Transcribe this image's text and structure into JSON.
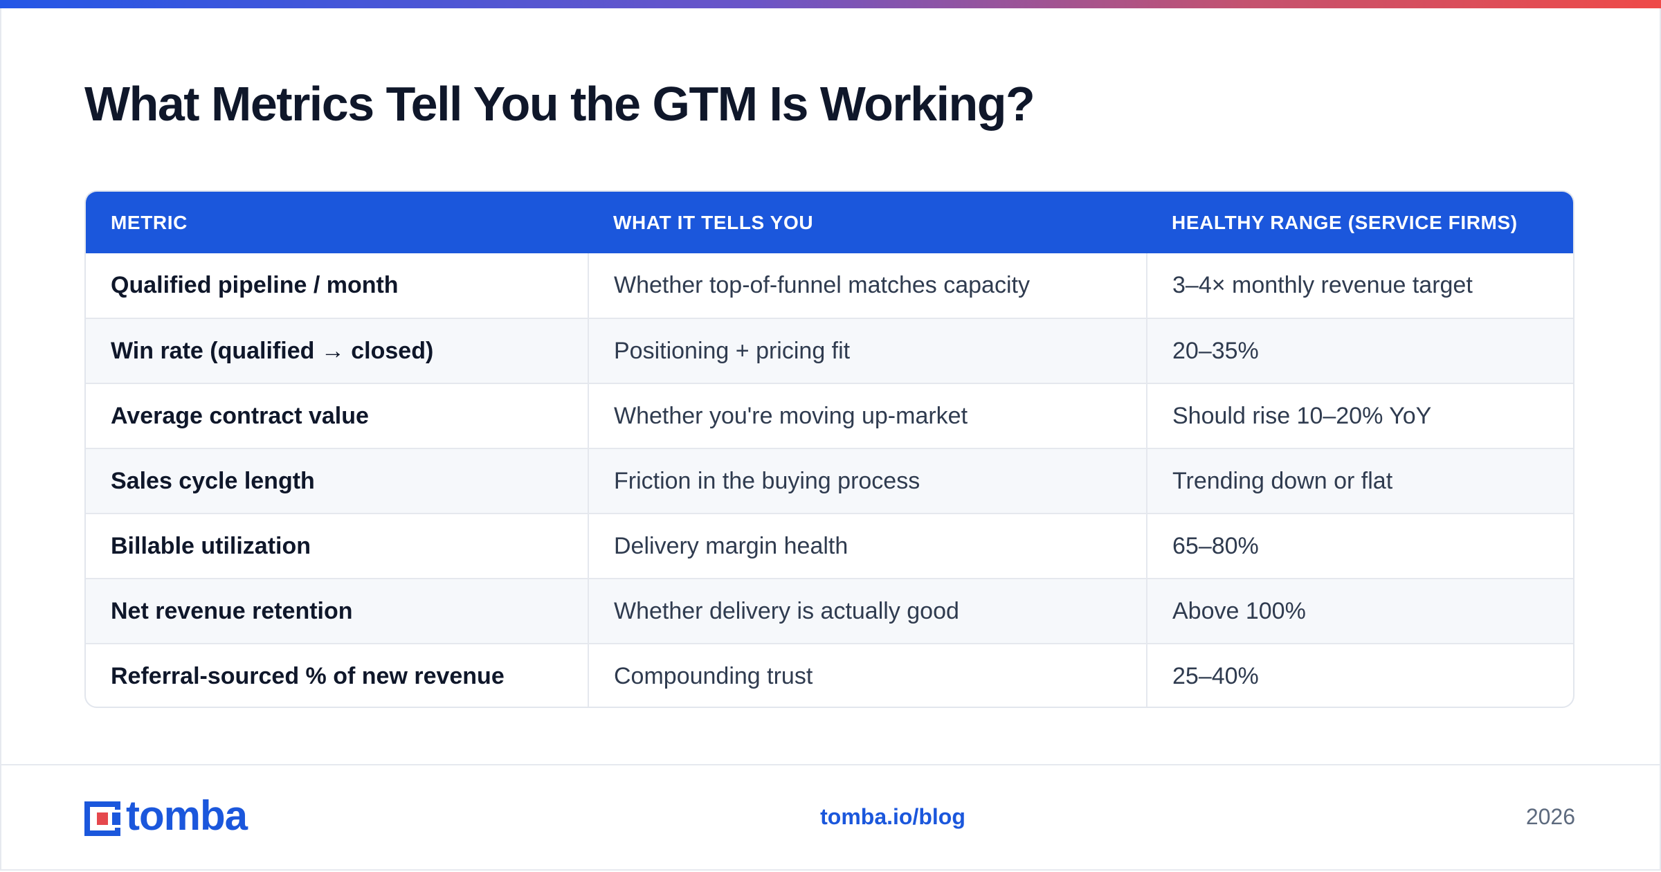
{
  "title": "What Metrics Tell You the GTM Is Working?",
  "table": {
    "headers": [
      "METRIC",
      "WHAT IT TELLS YOU",
      "HEALTHY RANGE (SERVICE FIRMS)"
    ],
    "rows": [
      [
        "Qualified pipeline / month",
        "Whether top-of-funnel matches capacity",
        "3–4× monthly revenue target"
      ],
      [
        "Win rate (qualified → closed)",
        "Positioning + pricing fit",
        "20–35%"
      ],
      [
        "Average contract value",
        "Whether you're moving up-market",
        "Should rise 10–20% YoY"
      ],
      [
        "Sales cycle length",
        "Friction in the buying process",
        "Trending down or flat"
      ],
      [
        "Billable utilization",
        "Delivery margin health",
        "65–80%"
      ],
      [
        "Net revenue retention",
        "Whether delivery is actually good",
        "Above 100%"
      ],
      [
        "Referral-sourced % of new revenue",
        "Compounding trust",
        "25–40%"
      ]
    ]
  },
  "footer": {
    "logo_text": "tomba",
    "link": "tomba.io/blog",
    "year": "2026"
  },
  "colors": {
    "brand_blue": "#1b57dc",
    "heading": "#0f172a",
    "body_text": "#2f3b4f",
    "stripe": "#f6f8fb",
    "gradient": [
      "#2457e6",
      "#6a55c8",
      "#c4526f",
      "#ef4a48"
    ]
  },
  "icons": {
    "logo": "tomba-logo-icon"
  }
}
